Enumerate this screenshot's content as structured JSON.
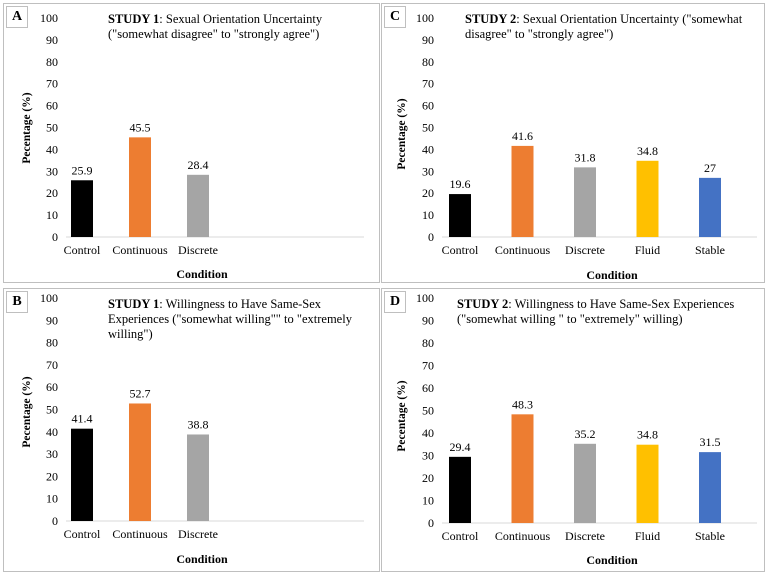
{
  "colors": {
    "Control": "#000000",
    "Continuous": "#ed7d31",
    "Discrete": "#a5a5a5",
    "Fluid": "#ffc000",
    "Stable": "#4472c4",
    "axis": "#d9d9d9",
    "border": "#bfbfbf"
  },
  "chart_data": [
    {
      "id": "A",
      "letter": "A",
      "type": "bar",
      "title_bold": "STUDY 1",
      "title_rest": ": Sexual Orientation Uncertainty (\"somewhat disagree\" to \"strongly agree\")",
      "xlabel": "Condition",
      "ylabel": "Pecentage (%)",
      "ylim": [
        0,
        100
      ],
      "yticks": [
        0,
        10,
        20,
        30,
        40,
        50,
        60,
        70,
        80,
        90,
        100
      ],
      "categories": [
        "Control",
        "Continuous",
        "Discrete"
      ],
      "values": [
        25.9,
        45.5,
        28.4
      ],
      "labels": [
        "25.9",
        "45.5",
        "28.4"
      ]
    },
    {
      "id": "C",
      "letter": "C",
      "type": "bar",
      "title_bold": "STUDY 2",
      "title_rest": ": Sexual Orientation Uncertainty (\"somewhat disagree\" to \"strongly agree\")",
      "xlabel": "Condition",
      "ylabel": "Pecentage (%)",
      "ylim": [
        0,
        100
      ],
      "yticks": [
        0,
        10,
        20,
        30,
        40,
        50,
        60,
        70,
        80,
        90,
        100
      ],
      "categories": [
        "Control",
        "Continuous",
        "Discrete",
        "Fluid",
        "Stable"
      ],
      "values": [
        19.6,
        41.6,
        31.8,
        34.8,
        27
      ],
      "labels": [
        "19.6",
        "41.6",
        "31.8",
        "34.8",
        "27"
      ]
    },
    {
      "id": "B",
      "letter": "B",
      "type": "bar",
      "title_bold": "STUDY 1",
      "title_rest": ": Willingness to Have Same-Sex Experiences (\"somewhat willing\"\" to \"extremely willing\")",
      "xlabel": "Condition",
      "ylabel": "Pecentage (%)",
      "ylim": [
        0,
        100
      ],
      "yticks": [
        0,
        10,
        20,
        30,
        40,
        50,
        60,
        70,
        80,
        90,
        100
      ],
      "categories": [
        "Control",
        "Continuous",
        "Discrete"
      ],
      "values": [
        41.4,
        52.7,
        38.8
      ],
      "labels": [
        "41.4",
        "52.7",
        "38.8"
      ]
    },
    {
      "id": "D",
      "letter": "D",
      "type": "bar",
      "title_bold": "STUDY 2",
      "title_rest": ": Willingness to Have Same-Sex Experiences (\"somewhat willing \" to \"extremely\" willing)",
      "xlabel": "Condition",
      "ylabel": "Pecentage (%)",
      "ylim": [
        0,
        100
      ],
      "yticks": [
        0,
        10,
        20,
        30,
        40,
        50,
        60,
        70,
        80,
        90,
        100
      ],
      "categories": [
        "Control",
        "Continuous",
        "Discrete",
        "Fluid",
        "Stable"
      ],
      "values": [
        29.4,
        48.3,
        35.2,
        34.8,
        31.5
      ],
      "labels": [
        "29.4",
        "48.3",
        "35.2",
        "34.8",
        "31.5"
      ]
    }
  ]
}
